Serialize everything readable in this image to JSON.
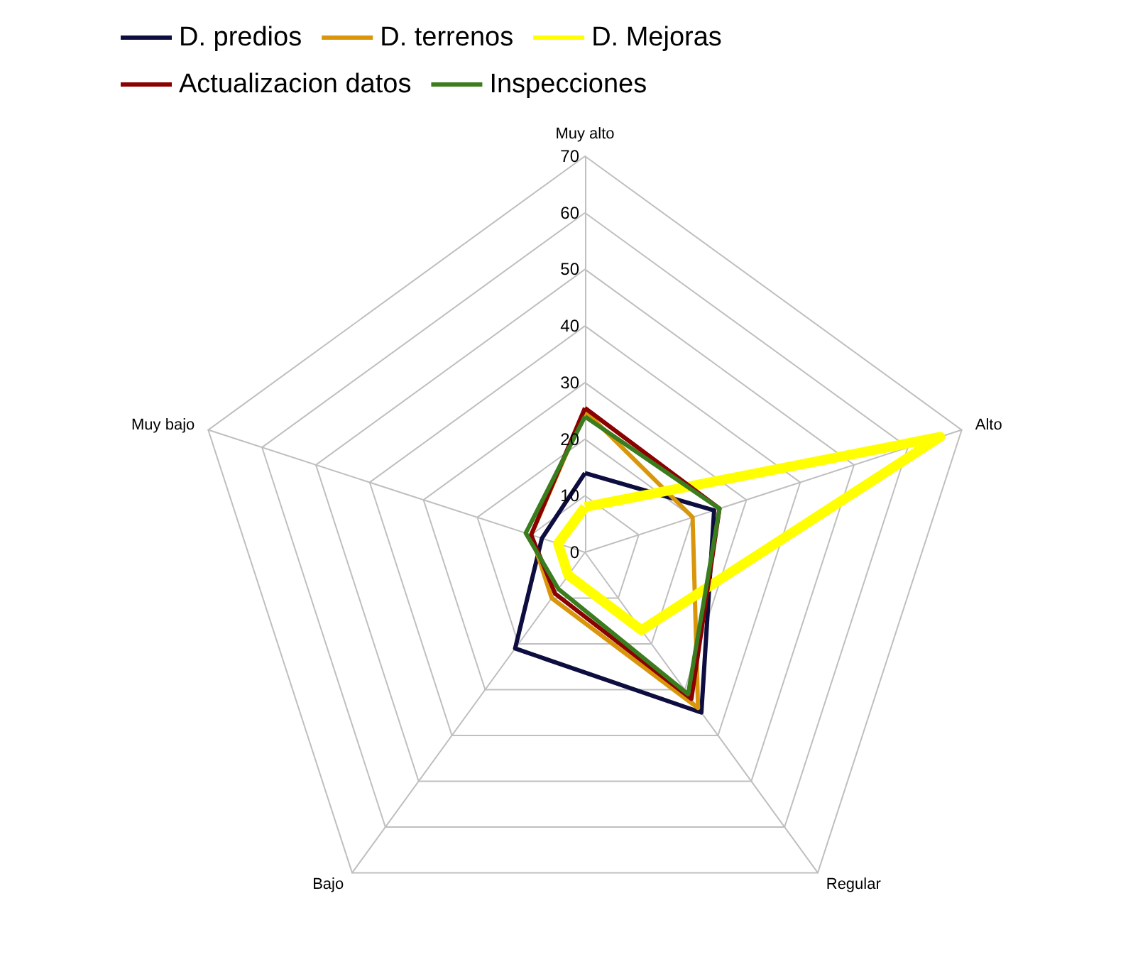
{
  "chart_data": {
    "type": "radar",
    "categories": [
      "Muy alto",
      "Alto",
      "Regular",
      "Bajo",
      "Muy bajo"
    ],
    "ylim": [
      0,
      70
    ],
    "yticks": [
      0,
      10,
      20,
      30,
      40,
      50,
      60,
      70
    ],
    "legend": "top",
    "series": [
      {
        "name": "D. predios",
        "color": "#0d0d40",
        "values": [
          14,
          24,
          35,
          21,
          8
        ]
      },
      {
        "name": "D. terrenos",
        "color": "#d9960a",
        "values": [
          25,
          20,
          34,
          10,
          10
        ]
      },
      {
        "name": "D. Mejoras",
        "color": "#ffff00",
        "values": [
          8,
          66,
          17,
          5,
          5
        ]
      },
      {
        "name": "Actualizacion datos",
        "color": "#8b0000",
        "values": [
          25.5,
          25,
          32,
          9,
          10
        ]
      },
      {
        "name": "Inspecciones",
        "color": "#3a7d1e",
        "values": [
          24,
          25,
          31,
          8,
          11
        ]
      }
    ]
  }
}
